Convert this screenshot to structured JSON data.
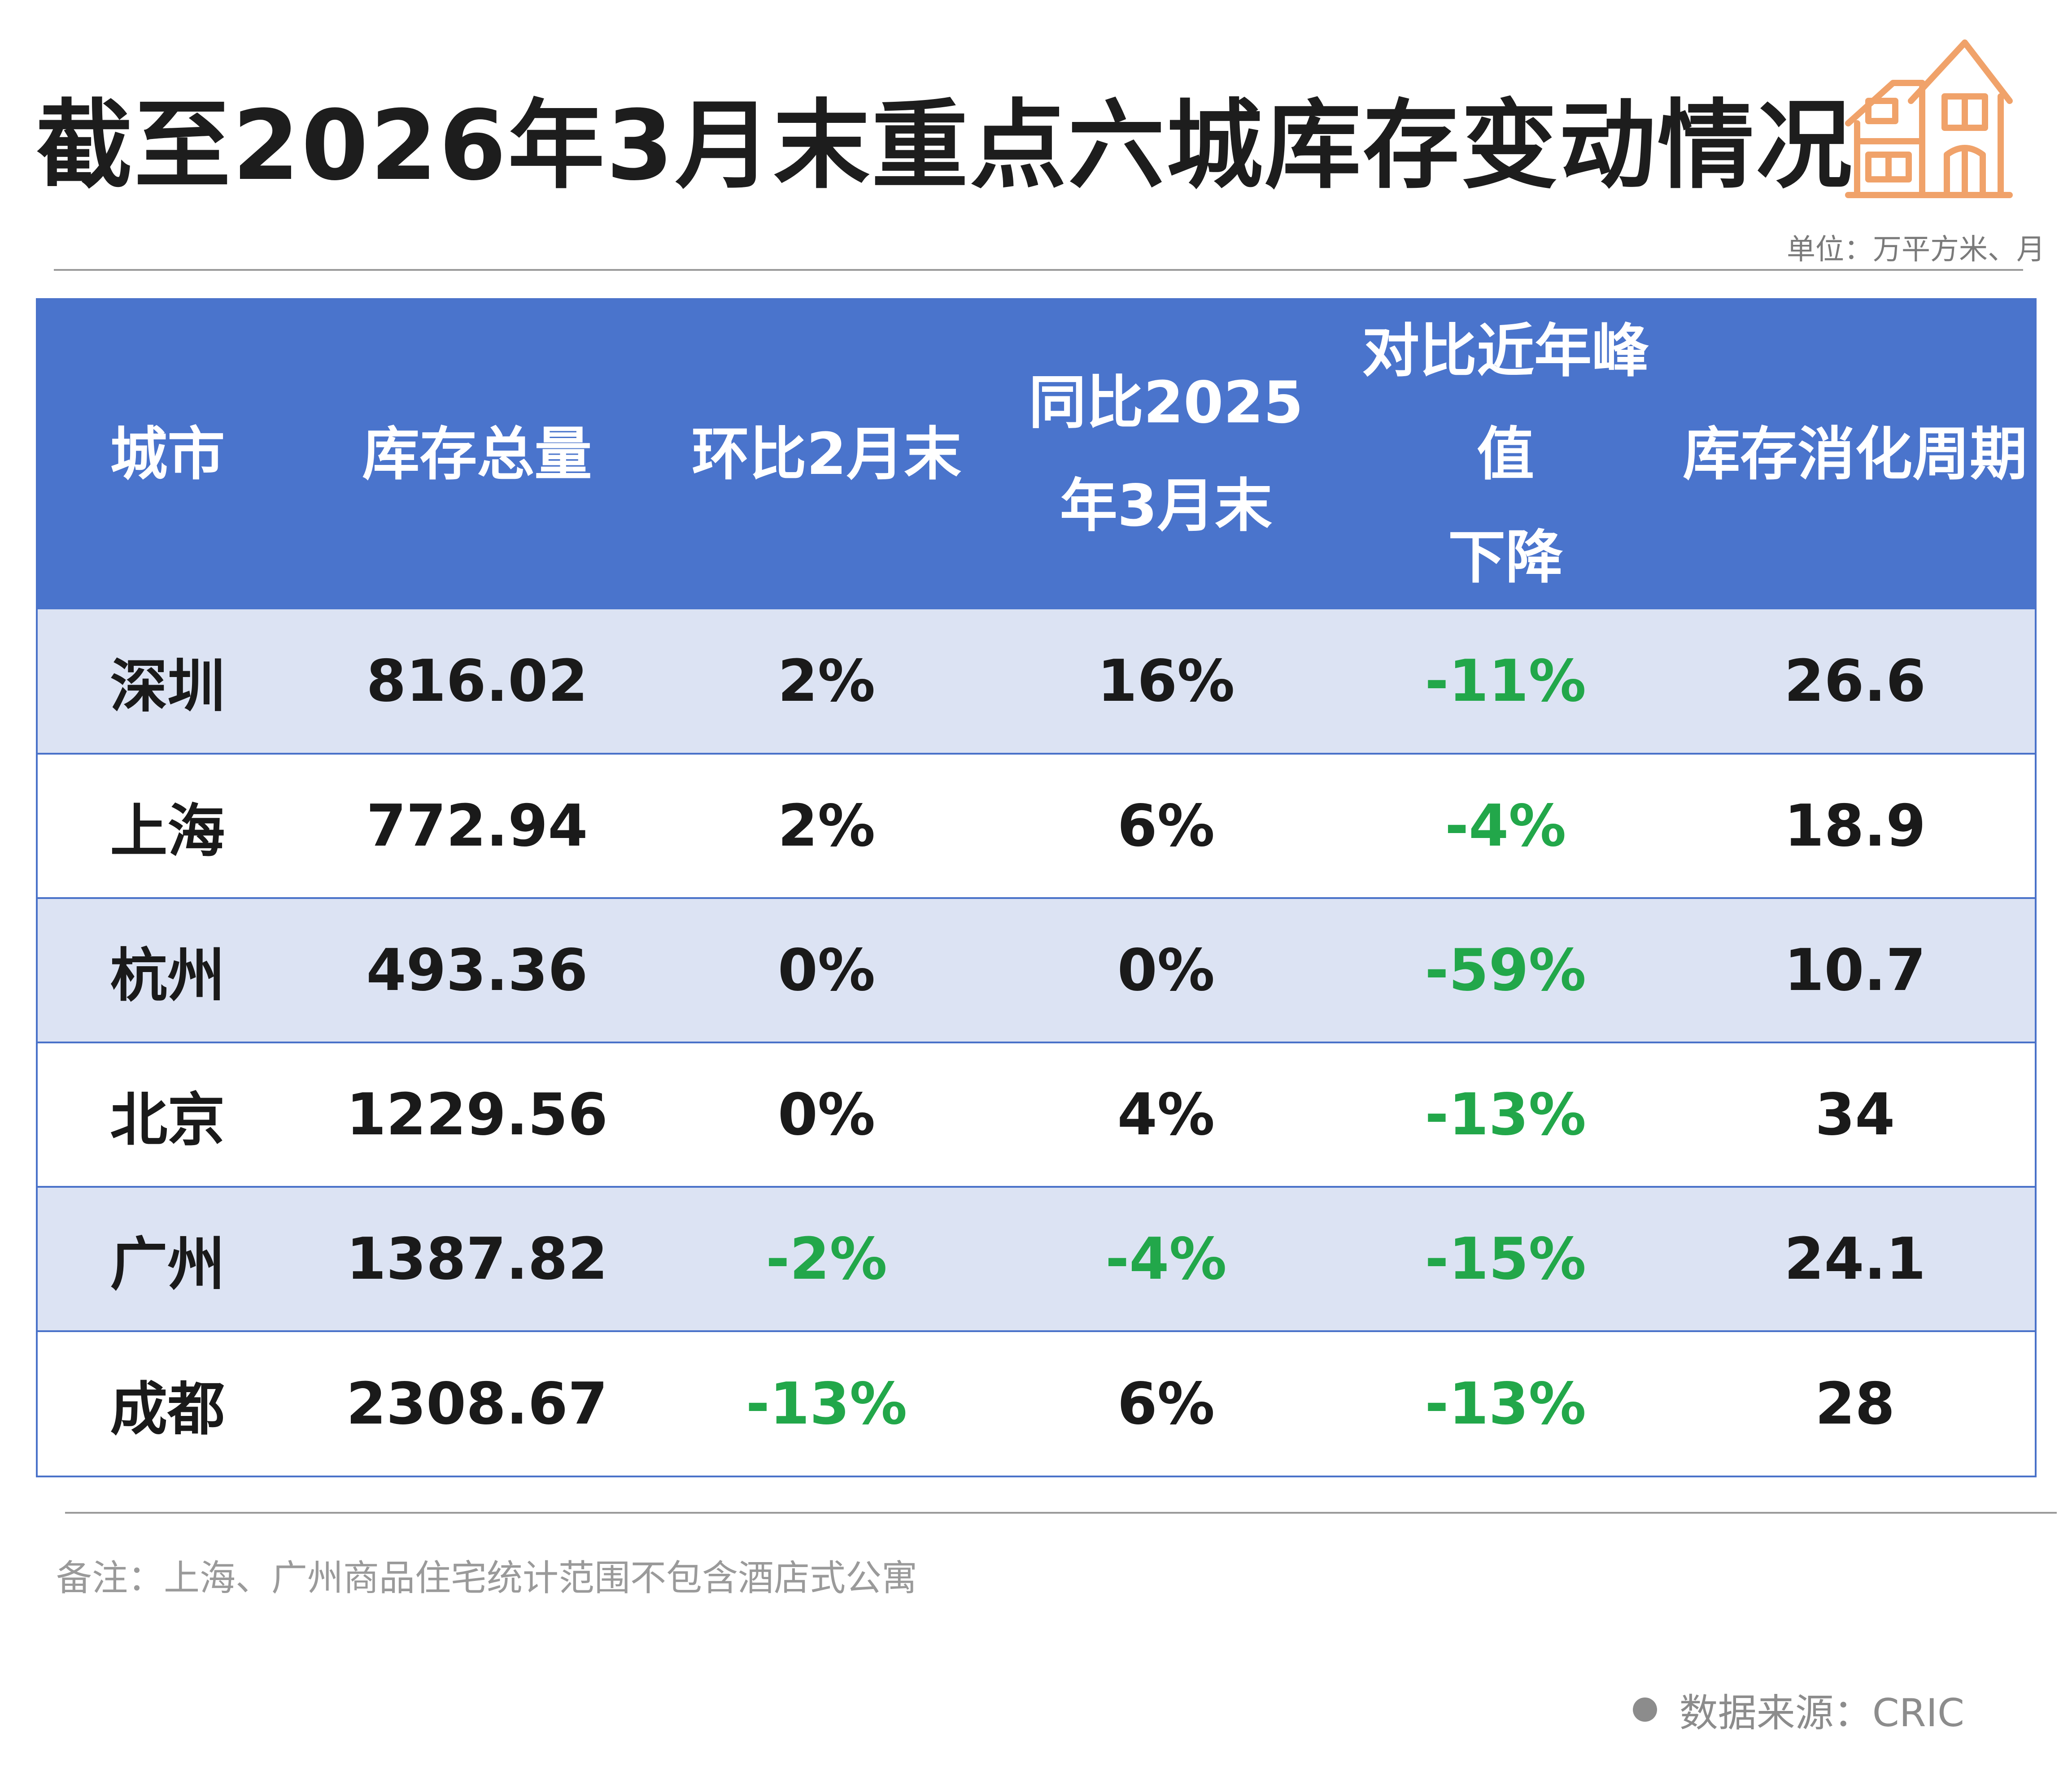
{
  "title": "截至2026年3月末重点六城库存变动情况",
  "unit_label": "单位：万平方米、月",
  "logo_icon": "house-icon",
  "accent_color": "#4a74cc",
  "negative_color": "#22a74a",
  "logo_color": "#f0a26a",
  "table": {
    "headers": [
      {
        "line1": "城市",
        "line2": ""
      },
      {
        "line1": "库存总量",
        "line2": ""
      },
      {
        "line1": "环比2月末",
        "line2": ""
      },
      {
        "line1": "同比2025",
        "line2": "年3月末"
      },
      {
        "line1": "对比近年峰值",
        "line2": "下降"
      },
      {
        "line1": "库存消化周期",
        "line2": ""
      }
    ],
    "rows": [
      {
        "city": "深圳",
        "total": "816.02",
        "mom": "2%",
        "yoy": "16%",
        "peak": "-11%",
        "cycle": "26.6"
      },
      {
        "city": "上海",
        "total": "772.94",
        "mom": "2%",
        "yoy": "6%",
        "peak": "-4%",
        "cycle": "18.9"
      },
      {
        "city": "杭州",
        "total": "493.36",
        "mom": "0%",
        "yoy": "0%",
        "peak": "-59%",
        "cycle": "10.7"
      },
      {
        "city": "北京",
        "total": "1229.56",
        "mom": "0%",
        "yoy": "4%",
        "peak": "-13%",
        "cycle": "34"
      },
      {
        "city": "广州",
        "total": "1387.82",
        "mom": "-2%",
        "yoy": "-4%",
        "peak": "-15%",
        "cycle": "24.1"
      },
      {
        "city": "成都",
        "total": "2308.67",
        "mom": "-13%",
        "yoy": "6%",
        "peak": "-13%",
        "cycle": "28"
      }
    ]
  },
  "note": "备注：上海、广州商品住宅统计范围不包含酒店式公寓",
  "source": "数据来源：CRIC"
}
